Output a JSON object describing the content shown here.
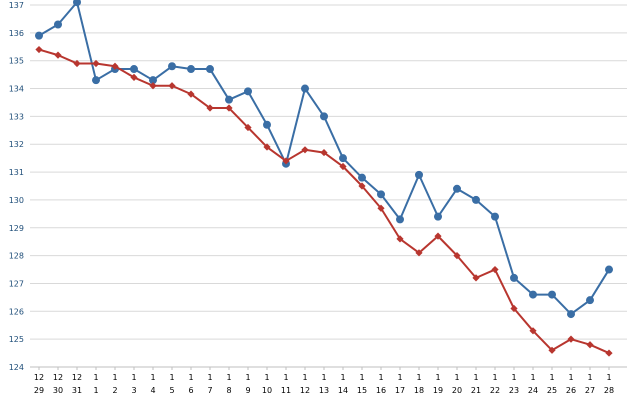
{
  "chart_data": {
    "type": "line",
    "title": "",
    "xlabel": "",
    "ylabel": "",
    "ylim": [
      124,
      137
    ],
    "yticks": [
      124,
      125,
      126,
      127,
      128,
      129,
      130,
      131,
      132,
      133,
      134,
      135,
      136,
      137
    ],
    "grid": true,
    "legend": "none",
    "categories": [
      {
        "month": "12",
        "day": "29"
      },
      {
        "month": "12",
        "day": "30"
      },
      {
        "month": "12",
        "day": "31"
      },
      {
        "month": "1",
        "day": "1"
      },
      {
        "month": "1",
        "day": "2"
      },
      {
        "month": "1",
        "day": "3"
      },
      {
        "month": "1",
        "day": "4"
      },
      {
        "month": "1",
        "day": "5"
      },
      {
        "month": "1",
        "day": "6"
      },
      {
        "month": "1",
        "day": "7"
      },
      {
        "month": "1",
        "day": "8"
      },
      {
        "month": "1",
        "day": "9"
      },
      {
        "month": "1",
        "day": "10"
      },
      {
        "month": "1",
        "day": "11"
      },
      {
        "month": "1",
        "day": "12"
      },
      {
        "month": "1",
        "day": "13"
      },
      {
        "month": "1",
        "day": "14"
      },
      {
        "month": "1",
        "day": "15"
      },
      {
        "month": "1",
        "day": "16"
      },
      {
        "month": "1",
        "day": "17"
      },
      {
        "month": "1",
        "day": "18"
      },
      {
        "month": "1",
        "day": "19"
      },
      {
        "month": "1",
        "day": "20"
      },
      {
        "month": "1",
        "day": "21"
      },
      {
        "month": "1",
        "day": "22"
      },
      {
        "month": "1",
        "day": "23"
      },
      {
        "month": "1",
        "day": "24"
      },
      {
        "month": "1",
        "day": "25"
      },
      {
        "month": "1",
        "day": "26"
      },
      {
        "month": "1",
        "day": "27"
      },
      {
        "month": "1",
        "day": "28"
      }
    ],
    "series": [
      {
        "color": "#3a6ea5",
        "marker": "circle",
        "values": [
          135.9,
          136.3,
          137.1,
          134.3,
          134.7,
          134.7,
          134.3,
          134.8,
          134.7,
          134.7,
          133.6,
          133.9,
          132.7,
          131.3,
          134.0,
          133.0,
          131.5,
          130.8,
          130.2,
          129.3,
          130.9,
          129.4,
          130.4,
          130.0,
          129.4,
          127.2,
          126.6,
          126.6,
          125.9,
          126.4,
          127.5
        ]
      },
      {
        "color": "#b8362f",
        "marker": "diamond",
        "values": [
          135.4,
          135.2,
          134.9,
          134.9,
          134.8,
          134.4,
          134.1,
          134.1,
          133.8,
          133.3,
          133.3,
          132.6,
          131.9,
          131.4,
          131.8,
          131.7,
          131.2,
          130.5,
          129.7,
          128.6,
          128.1,
          128.7,
          128.0,
          127.2,
          127.5,
          126.1,
          125.3,
          124.6,
          125.0,
          124.8,
          124.5
        ]
      }
    ]
  }
}
